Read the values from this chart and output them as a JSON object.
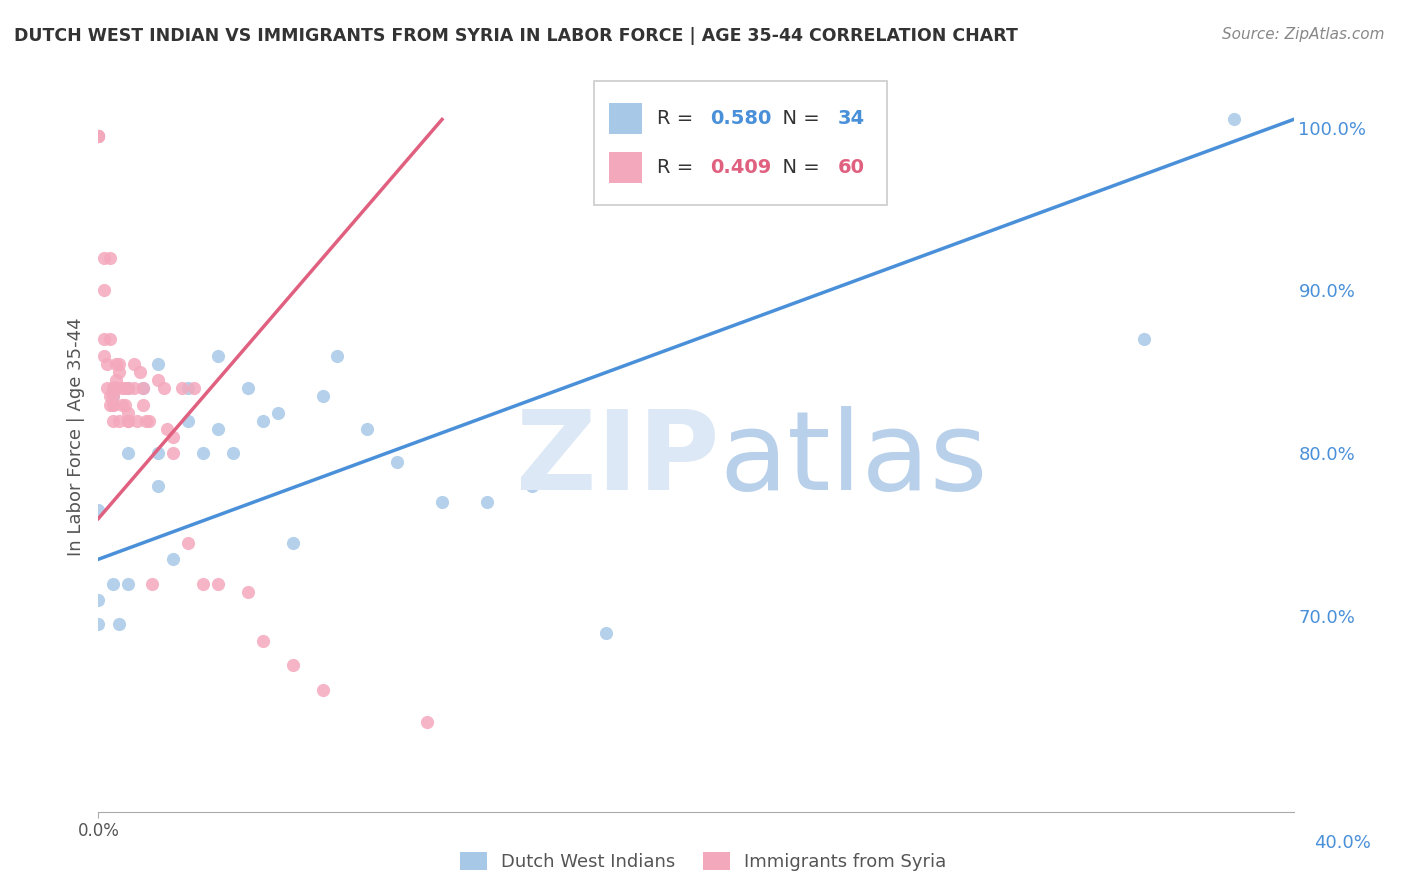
{
  "title": "DUTCH WEST INDIAN VS IMMIGRANTS FROM SYRIA IN LABOR FORCE | AGE 35-44 CORRELATION CHART",
  "source": "Source: ZipAtlas.com",
  "ylabel": "In Labor Force | Age 35-44",
  "blue_label": "Dutch West Indians",
  "pink_label": "Immigrants from Syria",
  "blue_R": 0.58,
  "blue_N": 34,
  "pink_R": 0.409,
  "pink_N": 60,
  "blue_color": "#a8c8e8",
  "pink_color": "#f4a8bc",
  "blue_line_color": "#4a90d9",
  "pink_line_color": "#e06080",
  "background_color": "#ffffff",
  "grid_color": "#cccccc",
  "xlim": [
    0.0,
    0.4
  ],
  "ylim": [
    0.58,
    1.04
  ],
  "right_yticks": [
    1.0,
    0.9,
    0.8,
    0.7
  ],
  "right_yticklabels": [
    "100.0%",
    "90.0%",
    "80.0%",
    "70.0%"
  ],
  "blue_line_x0": 0.0,
  "blue_line_y0": 0.735,
  "blue_line_x1": 0.4,
  "blue_line_y1": 1.005,
  "pink_line_x0": 0.0,
  "pink_line_y0": 0.76,
  "pink_line_x1": 0.115,
  "pink_line_y1": 1.005,
  "blue_scatter_x": [
    0.0,
    0.0,
    0.0,
    0.005,
    0.005,
    0.007,
    0.01,
    0.01,
    0.01,
    0.015,
    0.02,
    0.02,
    0.02,
    0.025,
    0.03,
    0.03,
    0.035,
    0.04,
    0.04,
    0.045,
    0.05,
    0.055,
    0.06,
    0.065,
    0.075,
    0.08,
    0.09,
    0.1,
    0.115,
    0.13,
    0.145,
    0.17,
    0.35,
    0.38
  ],
  "blue_scatter_y": [
    0.765,
    0.71,
    0.695,
    0.835,
    0.72,
    0.695,
    0.84,
    0.8,
    0.72,
    0.84,
    0.855,
    0.8,
    0.78,
    0.735,
    0.82,
    0.84,
    0.8,
    0.86,
    0.815,
    0.8,
    0.84,
    0.82,
    0.825,
    0.745,
    0.835,
    0.86,
    0.815,
    0.795,
    0.77,
    0.77,
    0.78,
    0.69,
    0.87,
    1.005
  ],
  "pink_scatter_x": [
    0.0,
    0.0,
    0.0,
    0.0,
    0.0,
    0.002,
    0.002,
    0.002,
    0.002,
    0.003,
    0.003,
    0.004,
    0.004,
    0.004,
    0.004,
    0.005,
    0.005,
    0.005,
    0.005,
    0.005,
    0.005,
    0.006,
    0.006,
    0.006,
    0.006,
    0.007,
    0.007,
    0.007,
    0.008,
    0.008,
    0.009,
    0.009,
    0.01,
    0.01,
    0.01,
    0.01,
    0.012,
    0.012,
    0.013,
    0.014,
    0.015,
    0.015,
    0.016,
    0.017,
    0.018,
    0.02,
    0.022,
    0.023,
    0.025,
    0.025,
    0.028,
    0.03,
    0.032,
    0.035,
    0.04,
    0.05,
    0.055,
    0.065,
    0.075,
    0.11
  ],
  "pink_scatter_y": [
    0.995,
    0.995,
    0.995,
    0.995,
    0.995,
    0.92,
    0.9,
    0.87,
    0.86,
    0.855,
    0.84,
    0.835,
    0.83,
    0.87,
    0.92,
    0.84,
    0.835,
    0.83,
    0.84,
    0.83,
    0.82,
    0.855,
    0.845,
    0.84,
    0.84,
    0.855,
    0.82,
    0.85,
    0.84,
    0.83,
    0.84,
    0.83,
    0.84,
    0.825,
    0.82,
    0.82,
    0.855,
    0.84,
    0.82,
    0.85,
    0.84,
    0.83,
    0.82,
    0.82,
    0.72,
    0.845,
    0.84,
    0.815,
    0.81,
    0.8,
    0.84,
    0.745,
    0.84,
    0.72,
    0.72,
    0.715,
    0.685,
    0.67,
    0.655,
    0.635
  ]
}
